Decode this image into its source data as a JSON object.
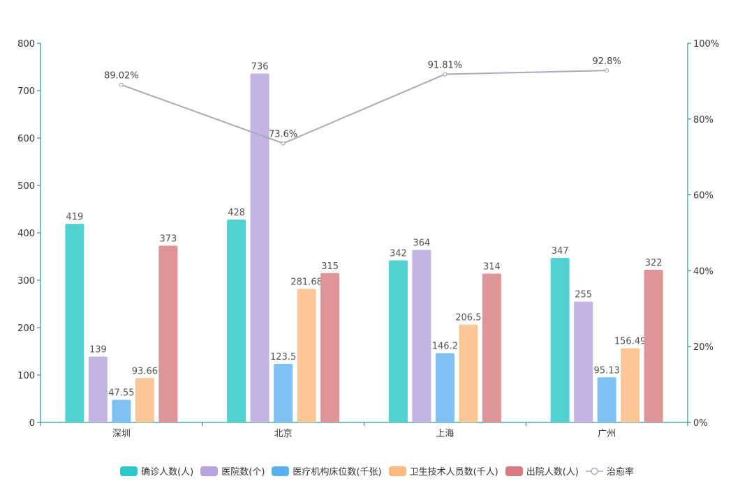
{
  "chart_data": {
    "type": "bar",
    "categories": [
      "深圳",
      "北京",
      "上海",
      "广州"
    ],
    "series": [
      {
        "name": "确诊人数(人)",
        "type": "bar",
        "axis": "left",
        "values": [
          419,
          428,
          342,
          347
        ],
        "color": "#2ec7c9",
        "bar_color": "#52d0d2"
      },
      {
        "name": "医院数(个)",
        "type": "bar",
        "axis": "left",
        "values": [
          139,
          736,
          364,
          255
        ],
        "color": "#b6a2de",
        "bar_color": "#c3b4e3"
      },
      {
        "name": "医疗机构床位数(千张)",
        "type": "bar",
        "axis": "left",
        "values": [
          47.55,
          123.5,
          146.2,
          95.13
        ],
        "color": "#5ab1ef",
        "bar_color": "#7fc1f3"
      },
      {
        "name": "卫生技术人员数(千人)",
        "type": "bar",
        "axis": "left",
        "values": [
          93.66,
          281.68,
          206.5,
          156.49
        ],
        "color": "#ffb980",
        "bar_color": "#ffc697"
      },
      {
        "name": "出院人数(人)",
        "type": "bar",
        "axis": "left",
        "values": [
          373,
          315,
          314,
          322
        ],
        "color": "#d87a80",
        "bar_color": "#df9497"
      },
      {
        "name": "治愈率",
        "type": "line",
        "axis": "right",
        "values": [
          89.02,
          73.6,
          91.81,
          92.8
        ],
        "labels": [
          "89.02%",
          "73.6%",
          "91.81%",
          "92.8%"
        ],
        "color": "#a9a9bd"
      }
    ],
    "y_left": {
      "min": 0,
      "max": 800,
      "ticks": [
        "0",
        "100",
        "200",
        "300",
        "400",
        "500",
        "600",
        "700",
        "800"
      ]
    },
    "y_right": {
      "min": 0,
      "max": 100,
      "ticks": [
        "0%",
        "20%",
        "40%",
        "60%",
        "80%",
        "100%"
      ]
    },
    "grid": false,
    "legend": "bottom",
    "axis_color": "#008080"
  }
}
